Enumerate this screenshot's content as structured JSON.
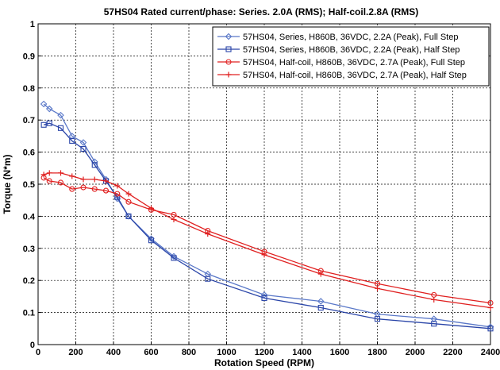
{
  "chart_data": {
    "type": "line",
    "title": "57HS04 Rated current/phase: Series. 2.0A (RMS); Half-coil.2.8A (RMS)",
    "xlabel": "Rotation Speed (RPM)",
    "ylabel": "Torque (N*m)",
    "xlim": [
      0,
      2400
    ],
    "ylim": [
      0,
      1
    ],
    "xticks": [
      0,
      200,
      400,
      600,
      800,
      1000,
      1200,
      1400,
      1600,
      1800,
      2000,
      2200,
      2400
    ],
    "xtick_labels": [
      "0",
      "200",
      "400",
      "600",
      "800",
      "1000",
      "1200",
      "1400",
      "1600",
      "1800",
      "2000",
      "2200",
      "2400"
    ],
    "yticks": [
      0,
      0.1,
      0.2,
      0.3,
      0.4,
      0.5,
      0.6,
      0.7,
      0.8,
      0.9,
      1
    ],
    "ytick_labels": [
      "0",
      "0.1",
      "0.2",
      "0.3",
      "0.4",
      "0.5",
      "0.6",
      "0.7",
      "0.8",
      "0.9",
      "1"
    ],
    "grid": true,
    "legend_position": "top-right",
    "series": [
      {
        "name": "57HS04, Series, H860B, 36VDC, 2.2A (Peak), Full Step",
        "color": "#5a78c8",
        "marker": "diamond",
        "x": [
          30,
          60,
          120,
          180,
          240,
          300,
          360,
          420,
          480,
          600,
          720,
          900,
          1200,
          1500,
          1800,
          2100,
          2400
        ],
        "y": [
          0.75,
          0.735,
          0.715,
          0.65,
          0.63,
          0.57,
          0.515,
          0.455,
          0.4,
          0.33,
          0.275,
          0.22,
          0.155,
          0.135,
          0.095,
          0.08,
          0.055
        ]
      },
      {
        "name": "57HS04, Series, H860B, 36VDC, 2.2A (Peak), Half Step",
        "color": "#2a45a8",
        "marker": "square",
        "x": [
          30,
          60,
          120,
          180,
          240,
          300,
          360,
          420,
          480,
          600,
          720,
          900,
          1200,
          1500,
          1800,
          2100,
          2400
        ],
        "y": [
          0.685,
          0.69,
          0.675,
          0.635,
          0.61,
          0.56,
          0.51,
          0.46,
          0.4,
          0.325,
          0.27,
          0.205,
          0.145,
          0.115,
          0.08,
          0.065,
          0.05
        ]
      },
      {
        "name": "57HS04, Half-coil, H860B, 36VDC, 2.7A (Peak), Full Step",
        "color": "#e02020",
        "marker": "circle",
        "x": [
          30,
          60,
          120,
          180,
          240,
          300,
          360,
          420,
          480,
          600,
          720,
          900,
          1200,
          1500,
          1800,
          2100,
          2400
        ],
        "y": [
          0.52,
          0.51,
          0.505,
          0.485,
          0.49,
          0.485,
          0.48,
          0.47,
          0.445,
          0.42,
          0.405,
          0.355,
          0.29,
          0.23,
          0.19,
          0.155,
          0.13
        ]
      },
      {
        "name": "57HS04, Half-coil, H860B, 36VDC, 2.7A (Peak), Half Step",
        "color": "#e02020",
        "marker": "plus",
        "x": [
          30,
          60,
          120,
          180,
          240,
          300,
          360,
          420,
          480,
          600,
          720,
          900,
          1200,
          1500,
          1800,
          2100,
          2400
        ],
        "y": [
          0.53,
          0.535,
          0.535,
          0.525,
          0.515,
          0.515,
          0.51,
          0.495,
          0.47,
          0.425,
          0.39,
          0.345,
          0.28,
          0.22,
          0.175,
          0.14,
          0.115
        ]
      }
    ]
  }
}
